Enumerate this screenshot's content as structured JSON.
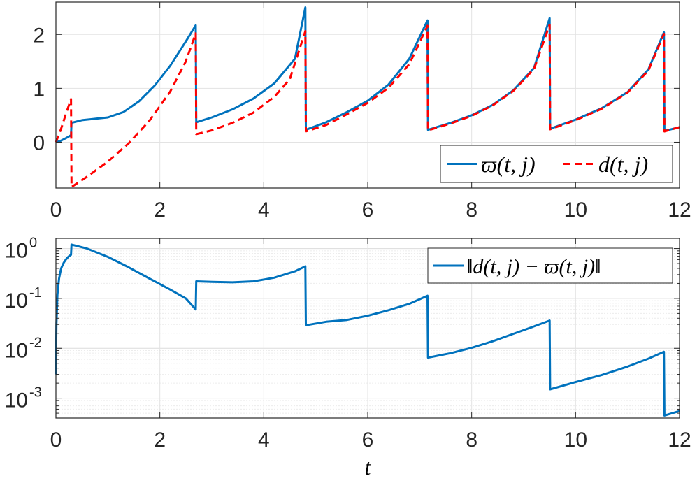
{
  "chart_data": [
    {
      "type": "line",
      "xlim": [
        0,
        12
      ],
      "ylim": [
        -0.85,
        2.6
      ],
      "x_ticks": [
        "0",
        "2",
        "4",
        "6",
        "8",
        "10",
        "12"
      ],
      "y_ticks": [
        "0",
        "1",
        "2"
      ],
      "grid": true,
      "legend_position": "bottom-right",
      "legend": {
        "varpi": "ϖ(t, j)",
        "d": "d(t, j)"
      },
      "series": [
        {
          "name": "ϖ(t, j)",
          "style": "solid",
          "color": "#0072BD",
          "x": [
            0.0,
            0.1,
            0.2,
            0.29,
            0.3,
            0.5,
            0.8,
            1.0,
            1.3,
            1.6,
            1.9,
            2.2,
            2.5,
            2.69,
            2.7,
            3.0,
            3.4,
            3.8,
            4.2,
            4.6,
            4.8,
            4.81,
            5.2,
            5.6,
            6.0,
            6.4,
            6.8,
            7.15,
            7.16,
            7.6,
            8.0,
            8.4,
            8.8,
            9.2,
            9.5,
            9.51,
            10.0,
            10.5,
            11.0,
            11.4,
            11.7,
            11.71,
            12.0
          ],
          "y": [
            0.0,
            0.03,
            0.08,
            0.13,
            0.36,
            0.41,
            0.44,
            0.46,
            0.56,
            0.76,
            1.05,
            1.42,
            1.87,
            2.17,
            0.37,
            0.46,
            0.61,
            0.81,
            1.09,
            1.55,
            2.5,
            0.23,
            0.37,
            0.56,
            0.77,
            1.07,
            1.55,
            2.26,
            0.23,
            0.36,
            0.5,
            0.69,
            0.96,
            1.38,
            2.3,
            0.25,
            0.42,
            0.63,
            0.93,
            1.35,
            2.04,
            0.21,
            0.28
          ]
        },
        {
          "name": "d(t, j)",
          "style": "dashed",
          "color": "#FF0000",
          "x": [
            0.0,
            0.1,
            0.2,
            0.29,
            0.3,
            0.6,
            1.0,
            1.4,
            1.8,
            2.2,
            2.5,
            2.69,
            2.7,
            3.0,
            3.4,
            3.8,
            4.2,
            4.5,
            4.8,
            4.81,
            5.2,
            5.6,
            6.0,
            6.4,
            6.8,
            7.15,
            7.16,
            7.6,
            8.0,
            8.4,
            8.8,
            9.2,
            9.5,
            9.51,
            10.0,
            10.5,
            11.0,
            11.4,
            11.7,
            11.71,
            12.0
          ],
          "y": [
            0.0,
            0.25,
            0.55,
            0.8,
            -0.83,
            -0.64,
            -0.36,
            -0.02,
            0.4,
            0.94,
            1.5,
            2.02,
            0.15,
            0.22,
            0.36,
            0.55,
            0.84,
            1.17,
            2.06,
            0.2,
            0.32,
            0.52,
            0.73,
            1.01,
            1.45,
            2.16,
            0.22,
            0.35,
            0.49,
            0.68,
            0.95,
            1.36,
            2.18,
            0.24,
            0.41,
            0.62,
            0.92,
            1.33,
            2.01,
            0.2,
            0.28
          ]
        }
      ]
    },
    {
      "type": "line",
      "xlim": [
        0,
        12
      ],
      "ylim": [
        0.0004,
        1.6
      ],
      "y_scale": "log",
      "x_ticks": [
        "0",
        "2",
        "4",
        "6",
        "8",
        "10",
        "12"
      ],
      "y_ticks": [
        {
          "base": "10",
          "exp": "0"
        },
        {
          "base": "10",
          "exp": "-1"
        },
        {
          "base": "10",
          "exp": "-2"
        },
        {
          "base": "10",
          "exp": "-3"
        }
      ],
      "xlabel": "t",
      "grid": true,
      "legend_position": "top-right",
      "legend": {
        "diff": "‖d(t, j) − ϖ(t, j)‖"
      },
      "series": [
        {
          "name": "‖d(t, j) − ϖ(t, j)‖",
          "style": "solid",
          "color": "#0072BD",
          "x": [
            0.0,
            0.01,
            0.03,
            0.06,
            0.1,
            0.15,
            0.2,
            0.25,
            0.29,
            0.3,
            0.6,
            1.0,
            1.4,
            1.8,
            2.2,
            2.5,
            2.69,
            2.7,
            3.0,
            3.4,
            3.8,
            4.2,
            4.6,
            4.8,
            4.81,
            5.2,
            5.6,
            6.0,
            6.4,
            6.8,
            7.15,
            7.16,
            7.6,
            8.0,
            8.4,
            8.8,
            9.2,
            9.5,
            9.51,
            10.0,
            10.5,
            11.0,
            11.4,
            11.7,
            11.71,
            12.0
          ],
          "y": [
            0.003,
            0.03,
            0.12,
            0.25,
            0.4,
            0.52,
            0.62,
            0.7,
            0.75,
            1.2,
            1.0,
            0.68,
            0.42,
            0.25,
            0.15,
            0.1,
            0.06,
            0.22,
            0.215,
            0.21,
            0.22,
            0.26,
            0.35,
            0.44,
            0.029,
            0.034,
            0.037,
            0.045,
            0.058,
            0.078,
            0.113,
            0.0065,
            0.008,
            0.0102,
            0.0138,
            0.0195,
            0.0275,
            0.036,
            0.0015,
            0.0021,
            0.0029,
            0.0043,
            0.0062,
            0.0085,
            0.00045,
            0.00055
          ]
        }
      ]
    }
  ]
}
